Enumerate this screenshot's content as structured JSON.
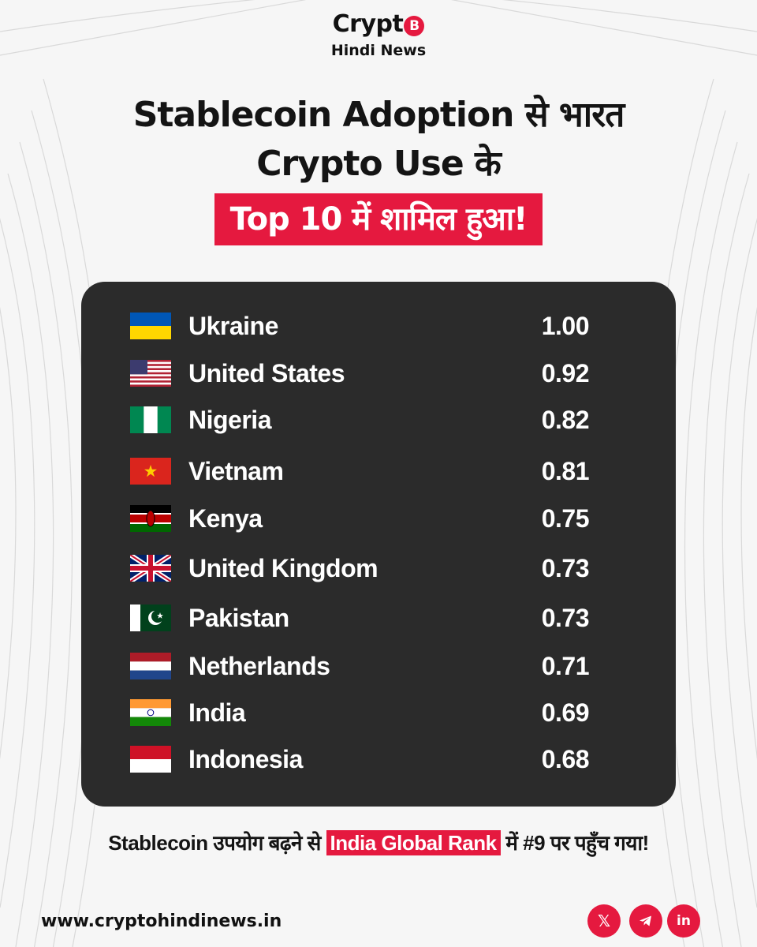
{
  "brand": {
    "logo_text": "Crypt",
    "logo_coin_symbol": "B",
    "subtitle": "Hindi News",
    "accent_color": "#e5193f"
  },
  "headline": {
    "line1": "Stablecoin Adoption से भारत",
    "line2": "Crypto Use के",
    "highlight": "Top 10 में शामिल हुआ!"
  },
  "ranking": {
    "rows": [
      {
        "flag": "ukraine-flag",
        "country": "Ukraine",
        "value": "1.00"
      },
      {
        "flag": "united-states-flag",
        "country": "United States",
        "value": "0.92"
      },
      {
        "flag": "nigeria-flag",
        "country": "Nigeria",
        "value": "0.82"
      },
      {
        "flag": "vietnam-flag",
        "country": "Vietnam",
        "value": "0.81"
      },
      {
        "flag": "kenya-flag",
        "country": "Kenya",
        "value": "0.75"
      },
      {
        "flag": "united-kingdom-flag",
        "country": "United Kingdom",
        "value": "0.73"
      },
      {
        "flag": "pakistan-flag",
        "country": "Pakistan",
        "value": "0.73"
      },
      {
        "flag": "netherlands-flag",
        "country": "Netherlands",
        "value": "0.71"
      },
      {
        "flag": "india-flag",
        "country": "India",
        "value": "0.69"
      },
      {
        "flag": "indonesia-flag",
        "country": "Indonesia",
        "value": "0.68"
      }
    ]
  },
  "footer": {
    "text_before": "Stablecoin उपयोग बढ़ने से ",
    "highlight": "India Global Rank",
    "text_after": " में #9 पर पहुँच गया!",
    "website": "www.cryptohindinews.in"
  },
  "social": [
    {
      "icon": "x-icon",
      "label": "𝕏"
    },
    {
      "icon": "telegram-icon",
      "label": ""
    },
    {
      "icon": "linkedin-icon",
      "label": "in"
    }
  ]
}
